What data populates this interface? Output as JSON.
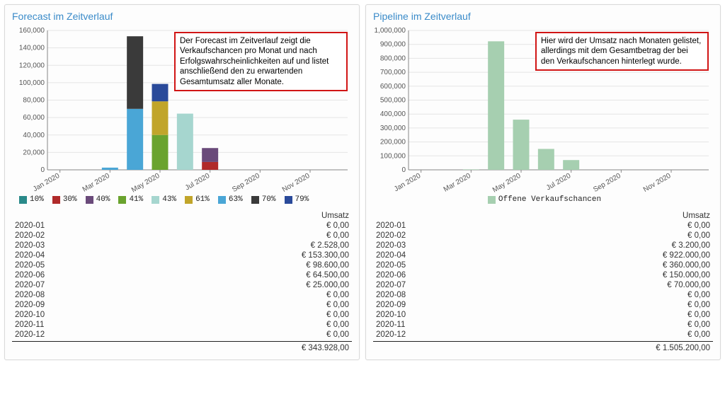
{
  "forecast": {
    "title": "Forecast im Zeitverlauf",
    "annotation": "Der Forecast im Zeitverlauf zeigt die Verkaufschancen pro Monat und nach Erfolgswahrscheinlichkeiten auf und listet anschließend den zu erwartenden Gesamtumsatz aller Monate.",
    "chart": {
      "type": "stacked-bar",
      "x_labels": [
        "Jan 2020",
        "Mar 2020",
        "May 2020",
        "Jul 2020",
        "Sep 2020",
        "Nov 2020"
      ],
      "x_categories": [
        "2020-01",
        "2020-02",
        "2020-03",
        "2020-04",
        "2020-05",
        "2020-06",
        "2020-07",
        "2020-08",
        "2020-09",
        "2020-10",
        "2020-11",
        "2020-12"
      ],
      "y_max": 160000,
      "y_tick_step": 20000,
      "bar_width": 0.65,
      "background_color": "#ffffff",
      "grid_color": "#e5e5e5",
      "axis_color": "#888888",
      "label_fontsize": 10,
      "series": [
        {
          "name": "10%",
          "color": "#2a8a8a",
          "values": [
            0,
            0,
            0,
            0,
            0,
            0,
            0,
            0,
            0,
            0,
            0,
            0
          ]
        },
        {
          "name": "30%",
          "color": "#b02a2a",
          "values": [
            0,
            0,
            0,
            0,
            0,
            0,
            9000,
            0,
            0,
            0,
            0,
            0
          ]
        },
        {
          "name": "40%",
          "color": "#6a4a7a",
          "values": [
            0,
            0,
            0,
            0,
            0,
            0,
            16000,
            0,
            0,
            0,
            0,
            0
          ]
        },
        {
          "name": "41%",
          "color": "#6aa32e",
          "values": [
            0,
            0,
            0,
            0,
            40000,
            0,
            0,
            0,
            0,
            0,
            0,
            0
          ]
        },
        {
          "name": "43%",
          "color": "#a6d6cf",
          "values": [
            0,
            0,
            0,
            0,
            0,
            64500,
            0,
            0,
            0,
            0,
            0,
            0
          ]
        },
        {
          "name": "61%",
          "color": "#c1a52a",
          "values": [
            0,
            0,
            0,
            0,
            38600,
            0,
            0,
            0,
            0,
            0,
            0,
            0
          ]
        },
        {
          "name": "63%",
          "color": "#4aa6d6",
          "values": [
            0,
            0,
            2528,
            70000,
            0,
            0,
            0,
            0,
            0,
            0,
            0,
            0
          ]
        },
        {
          "name": "70%",
          "color": "#3a3a3a",
          "values": [
            0,
            0,
            0,
            83300,
            0,
            0,
            0,
            0,
            0,
            0,
            0,
            0
          ]
        },
        {
          "name": "79%",
          "color": "#2a4a9a",
          "values": [
            0,
            0,
            0,
            0,
            20000,
            0,
            0,
            0,
            0,
            0,
            0,
            0
          ]
        }
      ]
    },
    "table": {
      "header_value": "Umsatz",
      "rows": [
        {
          "month": "2020-01",
          "value": "€ 0,00"
        },
        {
          "month": "2020-02",
          "value": "€ 0,00"
        },
        {
          "month": "2020-03",
          "value": "€ 2.528,00"
        },
        {
          "month": "2020-04",
          "value": "€ 153.300,00"
        },
        {
          "month": "2020-05",
          "value": "€ 98.600,00"
        },
        {
          "month": "2020-06",
          "value": "€ 64.500,00"
        },
        {
          "month": "2020-07",
          "value": "€ 25.000,00"
        },
        {
          "month": "2020-08",
          "value": "€ 0,00"
        },
        {
          "month": "2020-09",
          "value": "€ 0,00"
        },
        {
          "month": "2020-10",
          "value": "€ 0,00"
        },
        {
          "month": "2020-11",
          "value": "€ 0,00"
        },
        {
          "month": "2020-12",
          "value": "€ 0,00"
        }
      ],
      "total": "€ 343.928,00"
    }
  },
  "pipeline": {
    "title": "Pipeline im Zeitverlauf",
    "annotation": "Hier wird der Umsatz nach Monaten gelistet, allerdings mit dem Gesamtbetrag der bei den Verkaufschancen hinterlegt wurde.",
    "chart": {
      "type": "bar",
      "x_labels": [
        "Jan 2020",
        "Mar 2020",
        "May 2020",
        "Jul 2020",
        "Sep 2020",
        "Nov 2020"
      ],
      "x_categories": [
        "2020-01",
        "2020-02",
        "2020-03",
        "2020-04",
        "2020-05",
        "2020-06",
        "2020-07",
        "2020-08",
        "2020-09",
        "2020-10",
        "2020-11",
        "2020-12"
      ],
      "y_max": 1000000,
      "y_tick_step": 100000,
      "bar_width": 0.65,
      "background_color": "#ffffff",
      "grid_color": "#e5e5e5",
      "axis_color": "#888888",
      "label_fontsize": 10,
      "series": [
        {
          "name": "Offene Verkaufschancen",
          "color": "#a6cfb0",
          "values": [
            0,
            0,
            3200,
            922000,
            360000,
            150000,
            70000,
            0,
            0,
            0,
            0,
            0
          ]
        }
      ]
    },
    "table": {
      "header_value": "Umsatz",
      "rows": [
        {
          "month": "2020-01",
          "value": "€ 0,00"
        },
        {
          "month": "2020-02",
          "value": "€ 0,00"
        },
        {
          "month": "2020-03",
          "value": "€ 3.200,00"
        },
        {
          "month": "2020-04",
          "value": "€ 922.000,00"
        },
        {
          "month": "2020-05",
          "value": "€ 360.000,00"
        },
        {
          "month": "2020-06",
          "value": "€ 150.000,00"
        },
        {
          "month": "2020-07",
          "value": "€ 70.000,00"
        },
        {
          "month": "2020-08",
          "value": "€ 0,00"
        },
        {
          "month": "2020-09",
          "value": "€ 0,00"
        },
        {
          "month": "2020-10",
          "value": "€ 0,00"
        },
        {
          "month": "2020-11",
          "value": "€ 0,00"
        },
        {
          "month": "2020-12",
          "value": "€ 0,00"
        }
      ],
      "total": "€ 1.505.200,00"
    }
  }
}
